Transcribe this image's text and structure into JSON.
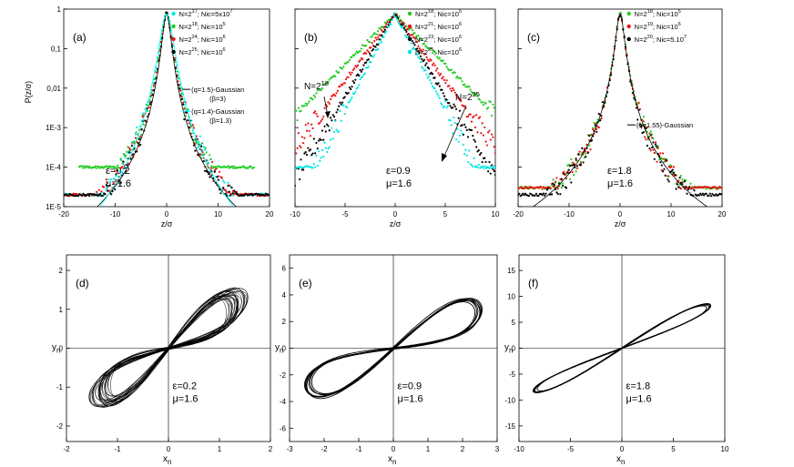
{
  "figure": {
    "colors": {
      "axis": "#000000",
      "gaussian": "#000000",
      "gaussian_alt": "#00ffff",
      "cyan": "#00e5e5",
      "green": "#22cc22",
      "red": "#ee1111",
      "black": "#000000"
    }
  },
  "chart_data": [
    {
      "id": "a",
      "type": "scatter",
      "panel_label": "(a)",
      "xlabel": "z/σ",
      "ylabel": "P(z/σ)",
      "xlim": [
        -20,
        20
      ],
      "ylim": [
        1e-05,
        1
      ],
      "yscale": "log",
      "xticks": [
        "-20",
        "-10",
        "0",
        "10",
        "20"
      ],
      "yticks": [
        "1E-5",
        "1E-4",
        "1E-3",
        "0,01",
        "0,1",
        "1"
      ],
      "annotation_lines": [
        "ε=0.2",
        "μ=1.6"
      ],
      "legend": [
        {
          "color": "cyan",
          "pre": "N=2",
          "sup": "17",
          "post": "; Nic=5x10",
          "sup2": "7"
        },
        {
          "color": "green",
          "pre": "N=2",
          "sup": "18",
          "post": "; Nic=10",
          "sup2": "5"
        },
        {
          "color": "red",
          "pre": "N=2",
          "sup": "24",
          "post": "; Nic=10",
          "sup2": "6"
        },
        {
          "color": "black",
          "pre": "N=2",
          "sup": "25",
          "post": "; Nic=10",
          "sup2": "6"
        }
      ],
      "curve_legend": [
        {
          "color": "gaussian",
          "label": "(q=1.5)-Gaussian",
          "sub": "(β=3)"
        },
        {
          "color": "gaussian_alt",
          "label": "(q=1.4)-Gaussian",
          "sub": "(β=1.3)"
        }
      ],
      "curves": [
        {
          "color": "gaussian",
          "q": 1.5,
          "beta": 3.0
        },
        {
          "color": "gaussian_alt",
          "q": 1.4,
          "beta": 1.3
        }
      ],
      "series": [
        {
          "color": "cyan",
          "q": 1.45,
          "beta": 1.6,
          "floor": 2e-05,
          "xmax": 20
        },
        {
          "color": "green",
          "q": 1.5,
          "beta": 2.2,
          "floor": 0.0001,
          "xmax": 17
        },
        {
          "color": "red",
          "q": 1.5,
          "beta": 2.4,
          "floor": 2e-05,
          "xmax": 20
        },
        {
          "color": "black",
          "q": 1.5,
          "beta": 2.6,
          "floor": 2e-05,
          "xmax": 20
        }
      ]
    },
    {
      "id": "b",
      "type": "scatter",
      "panel_label": "(b)",
      "xlabel": "z/σ",
      "ylabel": "",
      "xlim": [
        -10,
        10
      ],
      "ylim": [
        1e-05,
        1
      ],
      "yscale": "log",
      "xticks": [
        "-10",
        "-5",
        "0",
        "5",
        "10"
      ],
      "annotation_lines": [
        "ε=0.9",
        "μ=1.6"
      ],
      "arrow_labels": [
        {
          "pre": "N=2",
          "sup": "18"
        },
        {
          "pre": "N=2",
          "sup": "25"
        }
      ],
      "legend": [
        {
          "color": "green",
          "pre": "N=2",
          "sup": "18",
          "post": "; Nic=10",
          "sup2": "5"
        },
        {
          "color": "red",
          "pre": "N=2",
          "sup": "21",
          "post": "; Nic=10",
          "sup2": "6"
        },
        {
          "color": "black",
          "pre": "N=2",
          "sup": "23",
          "post": "; Nic=10",
          "sup2": "6"
        },
        {
          "color": "cyan",
          "pre": "N=2",
          "sup": "25",
          "post": "; Nic=10",
          "sup2": "6"
        }
      ],
      "series": [
        {
          "color": "green",
          "kind": "exp",
          "k": 0.38,
          "floor": 0.0015,
          "xmax": 10
        },
        {
          "color": "red",
          "kind": "exp",
          "k": 0.5,
          "floor": 0.0001,
          "xmax": 10
        },
        {
          "color": "black",
          "kind": "exp",
          "k": 0.62,
          "floor": 2e-05,
          "xmax": 10
        },
        {
          "color": "cyan",
          "kind": "exp",
          "k": 0.72,
          "floor": 0.0001,
          "xmax": 10
        }
      ]
    },
    {
      "id": "c",
      "type": "scatter",
      "panel_label": "(c)",
      "xlabel": "z/σ",
      "ylabel": "",
      "xlim": [
        -20,
        20
      ],
      "ylim": [
        1e-05,
        1
      ],
      "yscale": "log",
      "xticks": [
        "-20",
        "-10",
        "0",
        "10",
        "20"
      ],
      "annotation_lines": [
        "ε=1.8",
        "μ=1.6"
      ],
      "legend": [
        {
          "color": "green",
          "pre": "N=2",
          "sup": "18",
          "post": "; Nic=10",
          "sup2": "5"
        },
        {
          "color": "red",
          "pre": "N=2",
          "sup": "19",
          "post": "; Nic=10",
          "sup2": "6"
        },
        {
          "color": "black",
          "pre": "N=2",
          "sup": "20",
          "post": "; Nic=5.10",
          "sup2": "7"
        }
      ],
      "curve_legend": [
        {
          "color": "gaussian",
          "label": "(q=1.55)-Gaussian",
          "sub": ""
        }
      ],
      "curves": [
        {
          "color": "gaussian",
          "q": 1.55,
          "beta": 3.0
        }
      ],
      "series": [
        {
          "color": "green",
          "q": 1.55,
          "beta": 2.8,
          "floor": 3e-05,
          "xmax": 20
        },
        {
          "color": "red",
          "q": 1.55,
          "beta": 3.0,
          "floor": 3e-05,
          "xmax": 20
        },
        {
          "color": "black",
          "q": 1.55,
          "beta": 3.2,
          "floor": 2e-05,
          "xmax": 20
        }
      ]
    },
    {
      "id": "d",
      "type": "line",
      "panel_label": "(d)",
      "xlabel": "x",
      "xlabel_sub": "n",
      "ylabel": "y",
      "ylabel_sub": "n",
      "xlim": [
        -2,
        2
      ],
      "ylim": [
        -2.4,
        2.4
      ],
      "xticks": [
        "-2",
        "-1",
        "0",
        "1",
        "2"
      ],
      "yticks": [
        "-2",
        "-1",
        "0",
        "1",
        "2"
      ],
      "annotation_lines": [
        "ε=0.2",
        "μ=1.6"
      ],
      "attractor": {
        "a": 1.35,
        "b": 0.85,
        "tilt": 0.82,
        "strands": 30,
        "spread": 0.16
      }
    },
    {
      "id": "e",
      "type": "line",
      "panel_label": "(e)",
      "xlabel": "x",
      "xlabel_sub": "n",
      "ylabel": "y",
      "ylabel_sub": "n",
      "xlim": [
        -3,
        3
      ],
      "ylim": [
        -7,
        7
      ],
      "xticks": [
        "-3",
        "-2",
        "-1",
        "0",
        "1",
        "2",
        "3"
      ],
      "yticks": [
        "-6",
        "-4",
        "-2",
        "0",
        "2",
        "4",
        "6"
      ],
      "annotation_lines": [
        "ε=0.9",
        "μ=1.6"
      ],
      "attractor": {
        "a": 2.45,
        "b": 2.6,
        "tilt": 1.1,
        "strands": 8,
        "spread": 0.05
      }
    },
    {
      "id": "f",
      "type": "line",
      "panel_label": "(f)",
      "xlabel": "x",
      "xlabel_sub": "n",
      "ylabel": "y",
      "ylabel_sub": "n",
      "xlim": [
        -10,
        10
      ],
      "ylim": [
        -18,
        18
      ],
      "xticks": [
        "-10",
        "-5",
        "0",
        "5",
        "10"
      ],
      "yticks": [
        "-15",
        "-10",
        "-5",
        "0",
        "5",
        "10",
        "15"
      ],
      "annotation_lines": [
        "ε=1.8",
        "μ=1.6"
      ],
      "attractor": {
        "a": 8.4,
        "b": 2.4,
        "tilt": 0.95,
        "strands": 6,
        "spread": 0.03
      }
    }
  ]
}
